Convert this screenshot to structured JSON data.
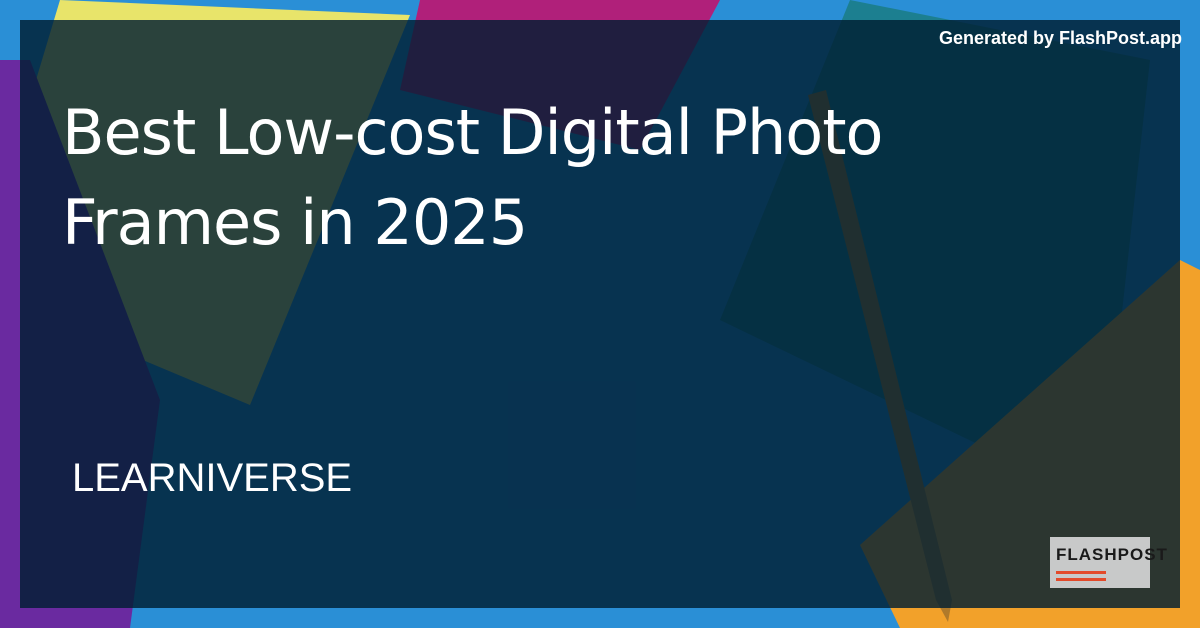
{
  "header": {
    "generated_by": "Generated by FlashPost.app"
  },
  "main": {
    "title": "Best Low-cost Digital Photo Frames in 2025",
    "brand": "LEARNIVERSE"
  },
  "logo": {
    "text": "FLASHPOST"
  },
  "colors": {
    "overlay": "#001e32",
    "background_blue": "#2a8fd6",
    "yellow": "#e8e46a",
    "purple": "#6a1f9a",
    "orange": "#f2a12a",
    "magenta": "#b0207a"
  }
}
